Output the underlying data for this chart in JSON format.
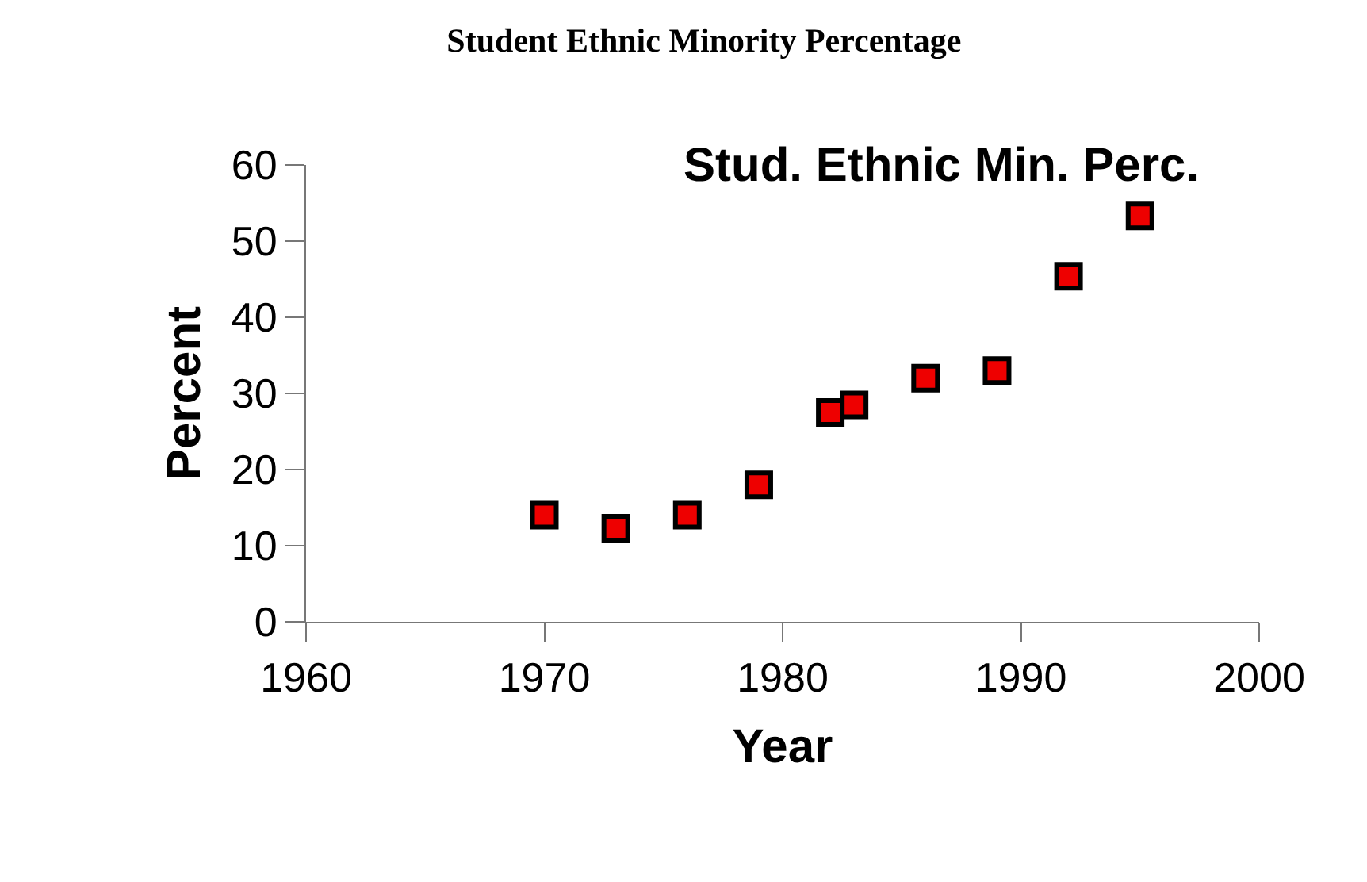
{
  "chart_data": {
    "type": "scatter",
    "title": "Student Ethnic Minority Percentage",
    "subtitle": "Stud. Ethnic Min. Perc.",
    "xlabel": "Year",
    "ylabel": "Percent",
    "x": [
      1970,
      1973,
      1976,
      1979,
      1982,
      1983,
      1986,
      1989,
      1992,
      1995
    ],
    "series": [
      {
        "color": "#ee0000",
        "values": [
          14,
          12.3,
          14,
          18,
          27.5,
          28.5,
          32,
          33,
          45.4,
          53.3
        ]
      }
    ],
    "xlim": [
      1960,
      2000
    ],
    "xticks": [
      1960,
      1970,
      1980,
      1990,
      2000
    ],
    "ylim": [
      0,
      60
    ],
    "yticks": [
      0,
      10,
      20,
      30,
      40,
      50,
      60
    ],
    "marker": "square"
  }
}
